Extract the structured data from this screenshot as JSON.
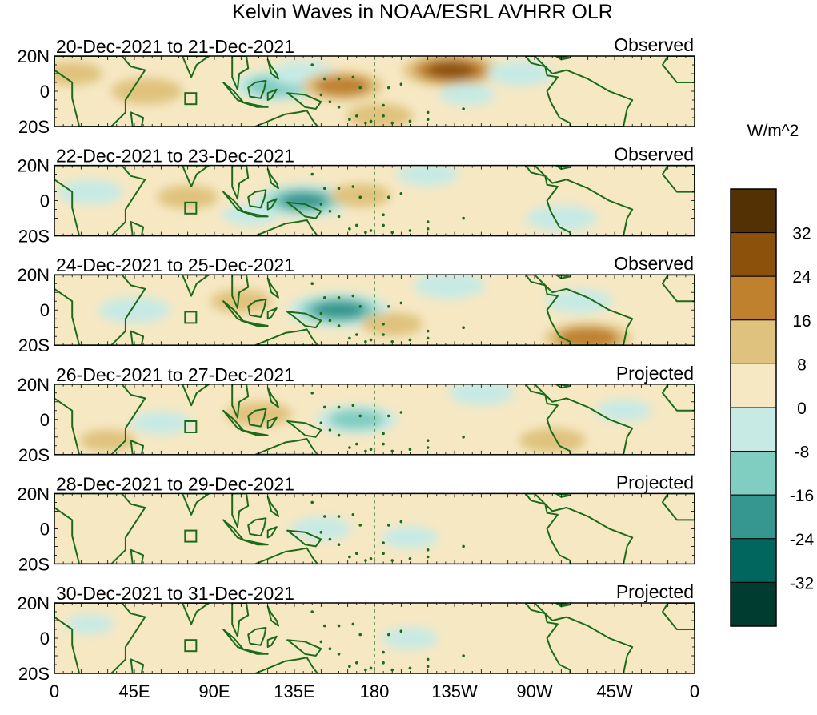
{
  "chart_data": {
    "type": "heatmap",
    "title": "Kelvin Waves in NOAA/ESRL AVHRR OLR",
    "units": "W/m^2",
    "y_ticks": [
      "20N",
      "0",
      "20S"
    ],
    "x_ticks": [
      "0",
      "45E",
      "90E",
      "135E",
      "180",
      "135W",
      "90W",
      "45W",
      "0"
    ],
    "xlim_deg_east": [
      0,
      360
    ],
    "ylim_deg": [
      -20,
      20
    ],
    "dateline_dashed": "180",
    "colorbar": {
      "levels": [
        -40,
        -32,
        -24,
        -16,
        -8,
        0,
        8,
        16,
        24,
        32,
        40
      ],
      "tick_labels": [
        "32",
        "24",
        "16",
        "8",
        "0",
        "-8",
        "-16",
        "-24",
        "-32"
      ],
      "colors": [
        "#013c30",
        "#01665e",
        "#35978f",
        "#80cdc1",
        "#c7eae5",
        "#f6e8c3",
        "#dfc27d",
        "#bf812d",
        "#8c510a",
        "#543005"
      ]
    },
    "panels": [
      {
        "date_label": "20-Dec-2021 to 21-Dec-2021",
        "status": "Observed",
        "anomalies": [
          {
            "lon": 125,
            "lat": 3,
            "value": -20
          },
          {
            "lon": 140,
            "lat": 10,
            "value": -12
          },
          {
            "lon": 162,
            "lat": 3,
            "value": 18
          },
          {
            "lon": 52,
            "lat": 0,
            "value": 14
          },
          {
            "lon": 10,
            "lat": 10,
            "value": 10
          },
          {
            "lon": 223,
            "lat": 12,
            "value": 24
          },
          {
            "lon": 183,
            "lat": -14,
            "value": 12
          },
          {
            "lon": 262,
            "lat": 10,
            "value": -12
          },
          {
            "lon": 232,
            "lat": -2,
            "value": -8
          },
          {
            "lon": 95,
            "lat": -12,
            "value": 6
          }
        ]
      },
      {
        "date_label": "22-Dec-2021 to 23-Dec-2021",
        "status": "Observed",
        "anomalies": [
          {
            "lon": 140,
            "lat": 0,
            "value": -24
          },
          {
            "lon": 20,
            "lat": 5,
            "value": -12
          },
          {
            "lon": 75,
            "lat": 2,
            "value": 10
          },
          {
            "lon": 172,
            "lat": 3,
            "value": 10
          },
          {
            "lon": 285,
            "lat": -10,
            "value": -14
          },
          {
            "lon": 210,
            "lat": 15,
            "value": -10
          },
          {
            "lon": 110,
            "lat": -8,
            "value": -8
          },
          {
            "lon": 240,
            "lat": -5,
            "value": 6
          }
        ]
      },
      {
        "date_label": "24-Dec-2021 to 25-Dec-2021",
        "status": "Observed",
        "anomalies": [
          {
            "lon": 160,
            "lat": 0,
            "value": -26
          },
          {
            "lon": 45,
            "lat": 0,
            "value": -14
          },
          {
            "lon": 222,
            "lat": 14,
            "value": -14
          },
          {
            "lon": 300,
            "lat": -16,
            "value": 20
          },
          {
            "lon": 105,
            "lat": 5,
            "value": 10
          },
          {
            "lon": 190,
            "lat": -8,
            "value": 10
          },
          {
            "lon": 295,
            "lat": 5,
            "value": -12
          },
          {
            "lon": 80,
            "lat": -10,
            "value": 6
          }
        ]
      },
      {
        "date_label": "26-Dec-2021 to 27-Dec-2021",
        "status": "Projected",
        "anomalies": [
          {
            "lon": 170,
            "lat": 0,
            "value": -18
          },
          {
            "lon": 115,
            "lat": 3,
            "value": 12
          },
          {
            "lon": 60,
            "lat": -2,
            "value": -10
          },
          {
            "lon": 280,
            "lat": -12,
            "value": 12
          },
          {
            "lon": 240,
            "lat": 15,
            "value": -12
          },
          {
            "lon": 30,
            "lat": -12,
            "value": 8
          },
          {
            "lon": 320,
            "lat": 5,
            "value": -8
          }
        ]
      },
      {
        "date_label": "28-Dec-2021 to 29-Dec-2021",
        "status": "Projected",
        "anomalies": [
          {
            "lon": 150,
            "lat": 0,
            "value": -10
          },
          {
            "lon": 200,
            "lat": -5,
            "value": -8
          },
          {
            "lon": 100,
            "lat": 10,
            "value": 6
          },
          {
            "lon": 250,
            "lat": 5,
            "value": 6
          },
          {
            "lon": 300,
            "lat": -5,
            "value": 6
          },
          {
            "lon": 40,
            "lat": 5,
            "value": 5
          }
        ]
      },
      {
        "date_label": "30-Dec-2021 to 31-Dec-2021",
        "status": "Projected",
        "anomalies": [
          {
            "lon": 200,
            "lat": 0,
            "value": -8
          },
          {
            "lon": 120,
            "lat": 5,
            "value": 5
          },
          {
            "lon": 290,
            "lat": 5,
            "value": 5
          },
          {
            "lon": 60,
            "lat": -5,
            "value": 4
          },
          {
            "lon": 20,
            "lat": 8,
            "value": -5
          }
        ]
      }
    ]
  }
}
